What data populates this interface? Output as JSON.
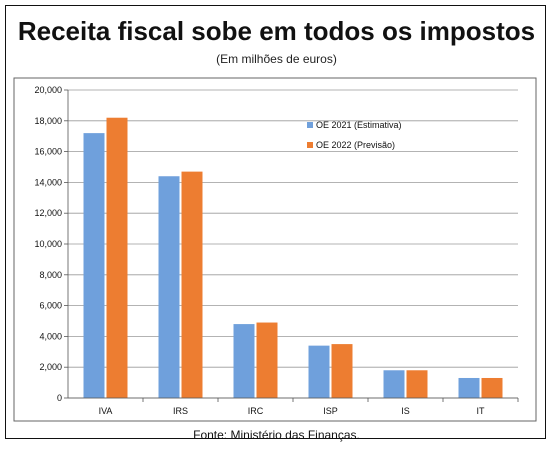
{
  "chart_data": {
    "type": "bar",
    "title": "Receita fiscal sobe em todos os impostos",
    "subtitle": "(Em milhões de euros)",
    "source": "Fonte: Ministério das Finanças.",
    "categories": [
      "IVA",
      "IRS",
      "IRC",
      "ISP",
      "IS",
      "IT"
    ],
    "series": [
      {
        "name": "OE 2021 (Estimativa)",
        "color": "#6fa0dc",
        "values": [
          17200,
          14400,
          4800,
          3400,
          1800,
          1300
        ]
      },
      {
        "name": "OE 2022 (Previsão)",
        "color": "#ed7d31",
        "values": [
          18200,
          14700,
          4900,
          3500,
          1800,
          1300
        ]
      }
    ],
    "ylim": [
      0,
      20000
    ],
    "yticks": [
      "0",
      "2,000",
      "4,000",
      "6,000",
      "8,000",
      "10,000",
      "12,000",
      "14,000",
      "16,000",
      "18,000",
      "20,000"
    ],
    "grid": true,
    "legend_position": "top-right"
  }
}
